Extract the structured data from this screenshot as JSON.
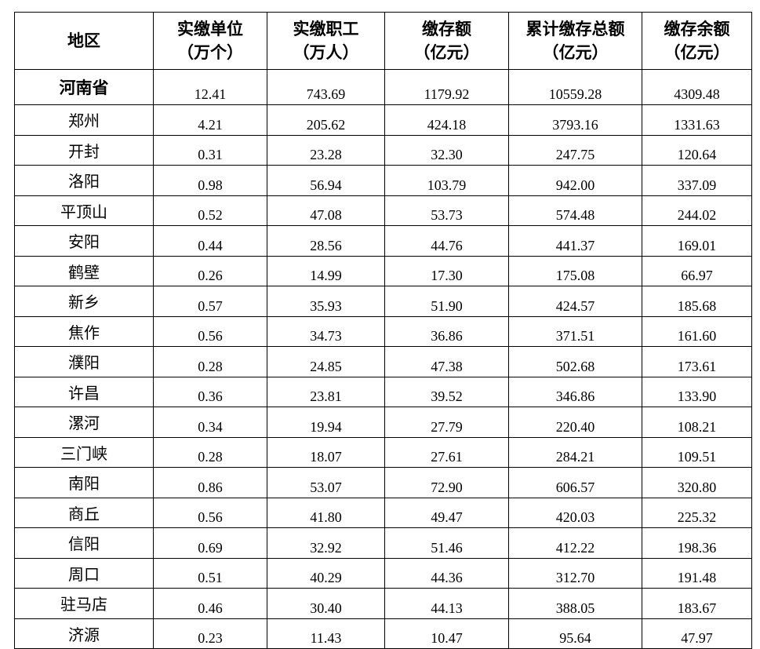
{
  "table": {
    "header": [
      [
        "地区"
      ],
      [
        "实缴单位",
        "（万个）"
      ],
      [
        "实缴职工",
        "（万人）"
      ],
      [
        "缴存额",
        "（亿元）"
      ],
      [
        "累计缴存总额",
        "（亿元）"
      ],
      [
        "缴存余额",
        "（亿元）"
      ]
    ],
    "rows": [
      [
        "河南省",
        "12.41",
        "743.69",
        "1179.92",
        "10559.28",
        "4309.48"
      ],
      [
        "郑州",
        "4.21",
        "205.62",
        "424.18",
        "3793.16",
        "1331.63"
      ],
      [
        "开封",
        "0.31",
        "23.28",
        "32.30",
        "247.75",
        "120.64"
      ],
      [
        "洛阳",
        "0.98",
        "56.94",
        "103.79",
        "942.00",
        "337.09"
      ],
      [
        "平顶山",
        "0.52",
        "47.08",
        "53.73",
        "574.48",
        "244.02"
      ],
      [
        "安阳",
        "0.44",
        "28.56",
        "44.76",
        "441.37",
        "169.01"
      ],
      [
        "鹤壁",
        "0.26",
        "14.99",
        "17.30",
        "175.08",
        "66.97"
      ],
      [
        "新乡",
        "0.57",
        "35.93",
        "51.90",
        "424.57",
        "185.68"
      ],
      [
        "焦作",
        "0.56",
        "34.73",
        "36.86",
        "371.51",
        "161.60"
      ],
      [
        "濮阳",
        "0.28",
        "24.85",
        "47.38",
        "502.68",
        "173.61"
      ],
      [
        "许昌",
        "0.36",
        "23.81",
        "39.52",
        "346.86",
        "133.90"
      ],
      [
        "漯河",
        "0.34",
        "19.94",
        "27.79",
        "220.40",
        "108.21"
      ],
      [
        "三门峡",
        "0.28",
        "18.07",
        "27.61",
        "284.21",
        "109.51"
      ],
      [
        "南阳",
        "0.86",
        "53.07",
        "72.90",
        "606.57",
        "320.80"
      ],
      [
        "商丘",
        "0.56",
        "41.80",
        "49.47",
        "420.03",
        "225.32"
      ],
      [
        "信阳",
        "0.69",
        "32.92",
        "51.46",
        "412.22",
        "198.36"
      ],
      [
        "周口",
        "0.51",
        "40.29",
        "44.36",
        "312.70",
        "191.48"
      ],
      [
        "驻马店",
        "0.46",
        "30.40",
        "44.13",
        "388.05",
        "183.67"
      ],
      [
        "济源",
        "0.23",
        "11.43",
        "10.47",
        "95.64",
        "47.97"
      ]
    ]
  }
}
